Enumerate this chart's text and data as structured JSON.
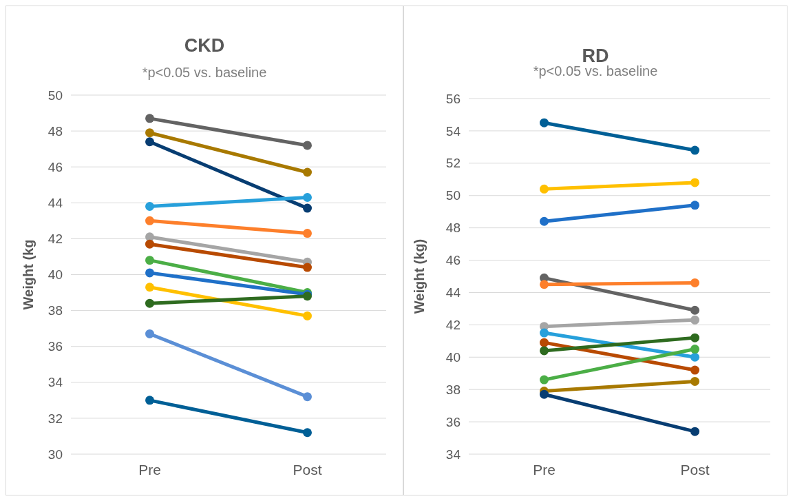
{
  "chart_data": [
    {
      "type": "line",
      "title": "CKD",
      "subtitle": "*p<0.05 vs. baseline",
      "ylabel": "Weight (kg",
      "categories": [
        "Pre",
        "Post"
      ],
      "ylim": [
        30,
        50
      ],
      "yticks": [
        30,
        32,
        34,
        36,
        38,
        40,
        42,
        44,
        46,
        48,
        50
      ],
      "grid": "y",
      "marker": "circle",
      "series": [
        {
          "color": "#636363",
          "values": [
            48.7,
            47.2
          ]
        },
        {
          "color": "#a87900",
          "values": [
            47.9,
            45.7
          ]
        },
        {
          "color": "#073d72",
          "values": [
            47.4,
            43.7
          ]
        },
        {
          "color": "#27a0db",
          "values": [
            43.8,
            44.3
          ]
        },
        {
          "color": "#fd7f2b",
          "values": [
            43.0,
            42.3
          ]
        },
        {
          "color": "#a5a5a5",
          "values": [
            42.1,
            40.7
          ]
        },
        {
          "color": "#b84a02",
          "values": [
            41.7,
            40.4
          ]
        },
        {
          "color": "#4bae46",
          "values": [
            40.8,
            39.0
          ]
        },
        {
          "color": "#1f70c8",
          "values": [
            40.1,
            38.9
          ]
        },
        {
          "color": "#ffc000",
          "values": [
            39.3,
            37.7
          ]
        },
        {
          "color": "#2e6b1f",
          "values": [
            38.4,
            38.8
          ]
        },
        {
          "color": "#5b8fd6",
          "values": [
            36.7,
            33.2
          ]
        },
        {
          "color": "#005f96",
          "values": [
            33.0,
            31.2
          ]
        }
      ]
    },
    {
      "type": "line",
      "title": "RD",
      "subtitle": "*p<0.05 vs. baseline",
      "ylabel": "Weight (kg)",
      "categories": [
        "Pre",
        "Post"
      ],
      "ylim": [
        34,
        56
      ],
      "yticks": [
        34,
        36,
        38,
        40,
        42,
        44,
        46,
        48,
        50,
        52,
        54,
        56
      ],
      "grid": "y",
      "marker": "circle",
      "series": [
        {
          "color": "#005f96",
          "values": [
            54.5,
            52.8
          ]
        },
        {
          "color": "#ffc000",
          "values": [
            50.4,
            50.8
          ]
        },
        {
          "color": "#1f70c8",
          "values": [
            48.4,
            49.4
          ]
        },
        {
          "color": "#636363",
          "values": [
            44.9,
            42.9
          ]
        },
        {
          "color": "#fd7f2b",
          "values": [
            44.5,
            44.6
          ]
        },
        {
          "color": "#a5a5a5",
          "values": [
            41.9,
            42.3
          ]
        },
        {
          "color": "#27a0db",
          "values": [
            41.5,
            40.0
          ]
        },
        {
          "color": "#b84a02",
          "values": [
            40.9,
            39.2
          ]
        },
        {
          "color": "#2e6b1f",
          "values": [
            40.4,
            41.2
          ]
        },
        {
          "color": "#4bae46",
          "values": [
            38.6,
            40.5
          ]
        },
        {
          "color": "#a87900",
          "values": [
            37.9,
            38.5
          ]
        },
        {
          "color": "#073d72",
          "values": [
            37.7,
            35.4
          ]
        }
      ]
    }
  ]
}
